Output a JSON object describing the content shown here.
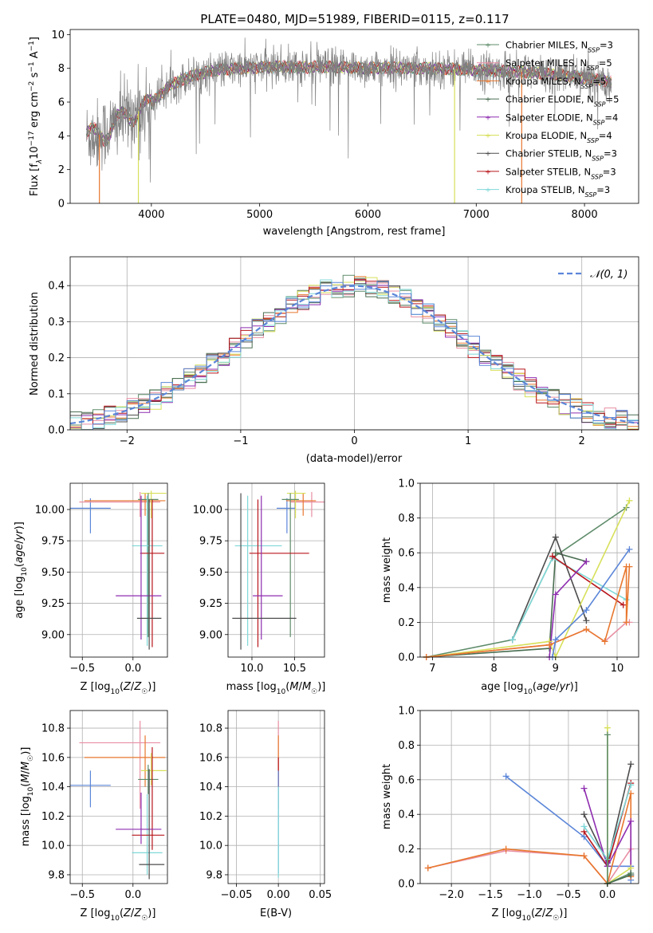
{
  "chart_data": [
    {
      "id": "spectrum",
      "type": "line",
      "title": "PLATE=0480, MJD=51989, FIBERID=0115, z=0.117",
      "xlabel": "wavelength [Angstrom, rest frame]",
      "ylabel": "Flux [f$_\\lambda$10$^{-17}$ erg cm$^{-2}$ s$^{-1}$ A$^{-1}$]",
      "ylabel_parts": [
        "Flux [f",
        "λ",
        "10",
        "−17",
        " erg cm",
        "−2",
        " s",
        "−1",
        " A",
        "−1",
        "]"
      ],
      "xlim": [
        3250,
        8500
      ],
      "ylim": [
        0,
        10.3
      ],
      "xticks": [
        "4000",
        "5000",
        "6000",
        "7000",
        "8000"
      ],
      "xtick_values": [
        4000,
        5000,
        6000,
        7000,
        8000
      ],
      "yticks": [
        "0",
        "2",
        "4",
        "6",
        "8",
        "10"
      ],
      "ytick_values": [
        0,
        2,
        4,
        6,
        8,
        10
      ],
      "grid": false,
      "legend_position": "top-right",
      "continuum_anchors": {
        "wavelength": [
          3400,
          3500,
          3600,
          3700,
          3800,
          3900,
          4000,
          4100,
          4200,
          4400,
          4600,
          4800,
          5000,
          5200,
          5400,
          5600,
          5800,
          6000,
          6200,
          6400,
          6600,
          6800,
          7000,
          7200,
          7400,
          7600,
          7800,
          8000,
          8250
        ],
        "flux": [
          4.0,
          4.0,
          4.3,
          4.9,
          5.3,
          5.5,
          5.9,
          6.6,
          7.1,
          7.6,
          7.9,
          8.0,
          8.05,
          8.1,
          8.05,
          8.1,
          8.05,
          8.0,
          8.05,
          8.0,
          8.0,
          7.95,
          7.9,
          7.85,
          7.8,
          7.7,
          7.6,
          7.45,
          7.2
        ]
      },
      "legend": [
        {
          "model": "Chabrier MILES",
          "n": "3",
          "color": "#5e8c6a"
        },
        {
          "model": "Salpeter MILES",
          "n": "5",
          "color": "#e88fa3"
        },
        {
          "model": "Kroupa MILES",
          "n": "5",
          "color": "#e8772e"
        },
        {
          "model": "Chabrier ELODIE",
          "n": "5",
          "color": "#4a6e52"
        },
        {
          "model": "Salpeter ELODIE",
          "n": "4",
          "color": "#8e2db0"
        },
        {
          "model": "Kroupa ELODIE",
          "n": "4",
          "color": "#d7e05a"
        },
        {
          "model": "Chabrier STELIB",
          "n": "3",
          "color": "#4d4d4d"
        },
        {
          "model": "Salpeter STELIB",
          "n": "3",
          "color": "#b8161b"
        },
        {
          "model": "Kroupa STELIB",
          "n": "3",
          "color": "#7fd8d8"
        }
      ],
      "nssp_subscript": "SSP"
    },
    {
      "id": "residuals",
      "type": "histogram",
      "xlabel": "(data-model)/error",
      "ylabel": "Normed distribution",
      "xlim": [
        -2.5,
        2.5
      ],
      "ylim": [
        0,
        0.48
      ],
      "xticks": [
        "−2",
        "−1",
        "0",
        "1",
        "2"
      ],
      "xtick_values": [
        -2,
        -1,
        0,
        1,
        2
      ],
      "yticks": [
        "0.0",
        "0.1",
        "0.2",
        "0.3",
        "0.4"
      ],
      "ytick_values": [
        0,
        0.1,
        0.2,
        0.3,
        0.4
      ],
      "grid": true,
      "legend_position": "top-right",
      "legend_label": "𝒩(0, 1)",
      "reference_curve": {
        "mean": 0,
        "sigma": 1,
        "color": "#5b86d8"
      },
      "bin_width": 0.1,
      "series_colors": [
        "#5e8c6a",
        "#e88fa3",
        "#e8772e",
        "#4a6e52",
        "#8e2db0",
        "#d7e05a",
        "#4d4d4d",
        "#b8161b",
        "#7fd8d8",
        "#5b86d8"
      ]
    },
    {
      "id": "age-vs-Z",
      "type": "scatter",
      "xlabel": "Z [log10(Z/Z☉)]",
      "ylabel": "age  [log10(age/yr)]",
      "xlim": [
        -0.62,
        0.34
      ],
      "ylim": [
        8.82,
        10.21
      ],
      "xticks": [
        "−0.5",
        "0.0"
      ],
      "xtick_values": [
        -0.5,
        0.0
      ],
      "yticks": [
        "9.00",
        "9.25",
        "9.50",
        "9.75",
        "10.00"
      ],
      "ytick_values": [
        9.0,
        9.25,
        9.5,
        9.75,
        10.0
      ],
      "grid": true,
      "points": [
        {
          "x": -0.42,
          "y": 10.01,
          "xerr": [
            0.2,
            0.2
          ],
          "yerr": [
            0.2,
            0.08
          ],
          "color": "#5b86d8"
        },
        {
          "x": 0.07,
          "y": 10.06,
          "xerr": [
            0.6,
            0.2
          ],
          "yerr": [
            0.12,
            0.08
          ],
          "color": "#e88fa3"
        },
        {
          "x": 0.12,
          "y": 10.07,
          "xerr": [
            0.6,
            0.2
          ],
          "yerr": [
            0.12,
            0.06
          ],
          "color": "#e8772e"
        },
        {
          "x": 0.18,
          "y": 10.13,
          "xerr": [
            0.1,
            0.15
          ],
          "yerr": [
            0.2,
            0.02
          ],
          "color": "#d7e05a"
        },
        {
          "x": 0.15,
          "y": 10.08,
          "xerr": [
            0.1,
            0.1
          ],
          "yerr": [
            1.1,
            0.05
          ],
          "color": "#5e8c6a"
        },
        {
          "x": 0.14,
          "y": 9.71,
          "xerr": [
            0.15,
            0.15
          ],
          "yerr": [
            0.8,
            0.4
          ],
          "color": "#7fd8d8"
        },
        {
          "x": 0.19,
          "y": 9.65,
          "xerr": [
            0.12,
            0.12
          ],
          "yerr": [
            0.75,
            0.43
          ],
          "color": "#b8161b"
        },
        {
          "x": 0.08,
          "y": 9.31,
          "xerr": [
            0.25,
            0.2
          ],
          "yerr": [
            0.35,
            0.8
          ],
          "color": "#8e2db0"
        },
        {
          "x": 0.16,
          "y": 9.13,
          "xerr": [
            0.12,
            0.12
          ],
          "yerr": [
            0.25,
            0.95
          ],
          "color": "#4d4d4d"
        }
      ]
    },
    {
      "id": "age-vs-mass",
      "type": "scatter",
      "xlabel": "mass [log10(M/M☉)]",
      "ylabel": "",
      "xlim": [
        9.72,
        10.85
      ],
      "ylim": [
        8.82,
        10.21
      ],
      "xticks": [
        "10.0",
        "10.5"
      ],
      "xtick_values": [
        10.0,
        10.5
      ],
      "yticks": [
        "9.00",
        "9.25",
        "9.50",
        "9.75",
        "10.00"
      ],
      "ytick_values": [
        9.0,
        9.25,
        9.5,
        9.75,
        10.0
      ],
      "grid": true,
      "points": [
        {
          "x": 10.41,
          "y": 10.01,
          "xerr": [
            0.12,
            0.1
          ],
          "yerr": [
            0.2,
            0.08
          ],
          "color": "#5b86d8"
        },
        {
          "x": 10.7,
          "y": 10.06,
          "xerr": [
            0.25,
            0.15
          ],
          "yerr": [
            0.12,
            0.08
          ],
          "color": "#e88fa3"
        },
        {
          "x": 10.6,
          "y": 10.07,
          "xerr": [
            0.2,
            0.15
          ],
          "yerr": [
            0.12,
            0.06
          ],
          "color": "#e8772e"
        },
        {
          "x": 10.51,
          "y": 10.13,
          "xerr": [
            0.1,
            0.12
          ],
          "yerr": [
            0.2,
            0.02
          ],
          "color": "#d7e05a"
        },
        {
          "x": 10.45,
          "y": 10.08,
          "xerr": [
            0.1,
            0.1
          ],
          "yerr": [
            1.1,
            0.05
          ],
          "color": "#5e8c6a"
        },
        {
          "x": 9.95,
          "y": 9.71,
          "xerr": [
            0.15,
            0.4
          ],
          "yerr": [
            0.8,
            0.4
          ],
          "color": "#7fd8d8"
        },
        {
          "x": 10.07,
          "y": 9.65,
          "xerr": [
            0.1,
            0.6
          ],
          "yerr": [
            0.75,
            0.43
          ],
          "color": "#b8161b"
        },
        {
          "x": 10.11,
          "y": 9.31,
          "xerr": [
            0.1,
            0.25
          ],
          "yerr": [
            0.35,
            0.8
          ],
          "color": "#8e2db0"
        },
        {
          "x": 9.87,
          "y": 9.13,
          "xerr": [
            0.1,
            0.65
          ],
          "yerr": [
            0.25,
            1.0
          ],
          "color": "#4d4d4d"
        }
      ]
    },
    {
      "id": "weight-vs-age",
      "type": "line",
      "xlabel": "age  [log10(age/yr)]",
      "ylabel": "mass weight",
      "xlim": [
        6.8,
        10.35
      ],
      "ylim": [
        0,
        1
      ],
      "xticks": [
        "7",
        "8",
        "9",
        "10"
      ],
      "xtick_values": [
        7,
        8,
        9,
        10
      ],
      "yticks": [
        "0.0",
        "0.2",
        "0.4",
        "0.6",
        "0.8",
        "1.0"
      ],
      "ytick_values": [
        0,
        0.2,
        0.4,
        0.6,
        0.8,
        1.0
      ],
      "grid": true,
      "series": [
        {
          "color": "#5e8c6a",
          "x": [
            6.9,
            8.3,
            8.95,
            10.15
          ],
          "y": [
            0.0,
            0.1,
            0.57,
            0.86
          ]
        },
        {
          "color": "#4a6e52",
          "x": [
            6.9,
            8.9,
            9.0,
            9.5
          ],
          "y": [
            0.0,
            0.05,
            0.6,
            0.55
          ]
        },
        {
          "color": "#4d4d4d",
          "x": [
            8.3,
            9.0,
            9.5
          ],
          "y": [
            0.1,
            0.69,
            0.21
          ]
        },
        {
          "color": "#7fd8d8",
          "x": [
            8.3,
            8.95,
            10.15
          ],
          "y": [
            0.1,
            0.57,
            0.33
          ]
        },
        {
          "color": "#b8161b",
          "x": [
            8.95,
            10.1
          ],
          "y": [
            0.58,
            0.3
          ]
        },
        {
          "color": "#8e2db0",
          "x": [
            8.9,
            9.0,
            9.5
          ],
          "y": [
            0.0,
            0.36,
            0.55
          ]
        },
        {
          "color": "#d7e05a",
          "x": [
            6.9,
            8.9,
            9.0,
            10.2
          ],
          "y": [
            0.0,
            0.09,
            0.0,
            0.9
          ]
        },
        {
          "color": "#e88fa3",
          "x": [
            6.9,
            8.9,
            9.5,
            9.8,
            10.15,
            10.2
          ],
          "y": [
            0.0,
            0.07,
            0.16,
            0.09,
            0.2,
            0.2
          ]
        },
        {
          "color": "#e8772e",
          "x": [
            6.9,
            8.9,
            9.5,
            9.8,
            10.15,
            10.15,
            10.2
          ],
          "y": [
            0.0,
            0.07,
            0.16,
            0.09,
            0.52,
            0.2,
            0.52
          ]
        },
        {
          "color": "#5b86d8",
          "x": [
            8.95,
            9.0,
            9.5,
            10.2
          ],
          "y": [
            0.0,
            0.1,
            0.27,
            0.62
          ]
        }
      ]
    },
    {
      "id": "mass-vs-Z",
      "type": "scatter",
      "xlabel": "Z [log10(Z/Z☉)]",
      "ylabel": "mass [log10(M/M☉)]",
      "xlim": [
        -0.62,
        0.34
      ],
      "ylim": [
        9.74,
        10.92
      ],
      "xticks": [
        "−0.5",
        "0.0"
      ],
      "xtick_values": [
        -0.5,
        0.0
      ],
      "yticks": [
        "9.8",
        "10.0",
        "10.2",
        "10.4",
        "10.6",
        "10.8"
      ],
      "ytick_values": [
        9.8,
        10.0,
        10.2,
        10.4,
        10.6,
        10.8
      ],
      "grid": true,
      "points": [
        {
          "x": -0.42,
          "y": 10.41,
          "xerr": [
            0.2,
            0.2
          ],
          "yerr": [
            0.15,
            0.1
          ],
          "color": "#5b86d8"
        },
        {
          "x": 0.07,
          "y": 10.7,
          "xerr": [
            0.6,
            0.2
          ],
          "yerr": [
            0.45,
            0.15
          ],
          "color": "#e88fa3"
        },
        {
          "x": 0.12,
          "y": 10.6,
          "xerr": [
            0.6,
            0.2
          ],
          "yerr": [
            0.2,
            0.15
          ],
          "color": "#e8772e"
        },
        {
          "x": 0.18,
          "y": 10.51,
          "xerr": [
            0.1,
            0.15
          ],
          "yerr": [
            0.1,
            0.12
          ],
          "color": "#d7e05a"
        },
        {
          "x": 0.15,
          "y": 10.45,
          "xerr": [
            0.1,
            0.1
          ],
          "yerr": [
            0.1,
            0.1
          ],
          "color": "#5e8c6a"
        },
        {
          "x": 0.14,
          "y": 9.95,
          "xerr": [
            0.15,
            0.15
          ],
          "yerr": [
            0.15,
            0.4
          ],
          "color": "#7fd8d8"
        },
        {
          "x": 0.19,
          "y": 10.07,
          "xerr": [
            0.2,
            0.12
          ],
          "yerr": [
            0.1,
            0.6
          ],
          "color": "#b8161b"
        },
        {
          "x": 0.08,
          "y": 10.11,
          "xerr": [
            0.25,
            0.2
          ],
          "yerr": [
            0.1,
            0.25
          ],
          "color": "#8e2db0"
        },
        {
          "x": 0.16,
          "y": 9.87,
          "xerr": [
            0.1,
            0.15
          ],
          "yerr": [
            0.1,
            0.65
          ],
          "color": "#4d4d4d"
        }
      ]
    },
    {
      "id": "mass-vs-EBV",
      "type": "scatter",
      "xlabel": "E(B-V)",
      "ylabel": "",
      "xlim": [
        -0.06,
        0.055
      ],
      "ylim": [
        9.74,
        10.92
      ],
      "xticks": [
        "−0.05",
        "0.00",
        "0.05"
      ],
      "xtick_values": [
        -0.05,
        0.0,
        0.05
      ],
      "yticks": [
        "9.8",
        "10.0",
        "10.2",
        "10.4",
        "10.6",
        "10.8"
      ],
      "ytick_values": [
        9.8,
        10.0,
        10.2,
        10.4,
        10.6,
        10.8
      ],
      "grid": true,
      "points": [
        {
          "x": 0.0,
          "y": 10.7,
          "yerr": [
            0.45,
            0.15
          ],
          "color": "#e88fa3"
        },
        {
          "x": 0.0,
          "y": 10.6,
          "yerr": [
            0.2,
            0.15
          ],
          "color": "#e8772e"
        },
        {
          "x": 0.0,
          "y": 10.5,
          "yerr": [
            0.1,
            0.1
          ],
          "color": "#b8161b"
        },
        {
          "x": 0.0,
          "y": 10.41,
          "yerr": [
            0.6,
            0.1
          ],
          "color": "#5b86d8"
        },
        {
          "x": 0.0,
          "y": 10.0,
          "yerr": [
            0.22,
            0.4
          ],
          "color": "#7fd8d8"
        }
      ]
    },
    {
      "id": "weight-vs-Z",
      "type": "line",
      "xlabel": "Z [log10(Z/Z☉)]",
      "ylabel": "mass weight",
      "xlim": [
        -2.4,
        0.4
      ],
      "ylim": [
        0,
        1
      ],
      "xticks": [
        "−2.0",
        "−1.5",
        "−1.0",
        "−0.5",
        "0.0"
      ],
      "xtick_values": [
        -2.0,
        -1.5,
        -1.0,
        -0.5,
        0.0
      ],
      "yticks": [
        "0.0",
        "0.2",
        "0.4",
        "0.6",
        "0.8",
        "1.0"
      ],
      "ytick_values": [
        0,
        0.2,
        0.4,
        0.6,
        0.8,
        1.0
      ],
      "grid": true,
      "series": [
        {
          "color": "#5b86d8",
          "x": [
            -1.3,
            -0.3,
            0.0,
            0.3,
            0.3
          ],
          "y": [
            0.62,
            0.27,
            0.1,
            0.1,
            0.02
          ]
        },
        {
          "color": "#e88fa3",
          "x": [
            -2.3,
            -1.3,
            -0.3,
            0.0,
            0.3
          ],
          "y": [
            0.09,
            0.19,
            0.16,
            0.0,
            0.2
          ]
        },
        {
          "color": "#e8772e",
          "x": [
            -2.3,
            -1.3,
            -0.3,
            0.0,
            0.3,
            0.3
          ],
          "y": [
            0.09,
            0.2,
            0.16,
            0.0,
            0.52,
            0.04
          ]
        },
        {
          "color": "#4d4d4d",
          "x": [
            -0.3,
            0.0,
            0.3
          ],
          "y": [
            0.4,
            0.12,
            0.69
          ]
        },
        {
          "color": "#b8161b",
          "x": [
            -0.3,
            0.0,
            0.3
          ],
          "y": [
            0.3,
            0.1,
            0.58
          ]
        },
        {
          "color": "#8e2db0",
          "x": [
            -0.3,
            0.0,
            0.3,
            0.3
          ],
          "y": [
            0.55,
            0.1,
            0.36,
            0.05
          ]
        },
        {
          "color": "#7fd8d8",
          "x": [
            -0.3,
            0.0,
            0.3
          ],
          "y": [
            0.33,
            0.14,
            0.57
          ]
        },
        {
          "color": "#d7e05a",
          "x": [
            0.0,
            0.0,
            0.3
          ],
          "y": [
            0.9,
            0.0,
            0.09
          ]
        },
        {
          "color": "#5e8c6a",
          "x": [
            0.0,
            0.0,
            0.3
          ],
          "y": [
            0.86,
            0.0,
            0.06
          ]
        },
        {
          "color": "#4a6e52",
          "x": [
            0.0,
            0.3
          ],
          "y": [
            0.0,
            0.05
          ]
        }
      ]
    }
  ]
}
